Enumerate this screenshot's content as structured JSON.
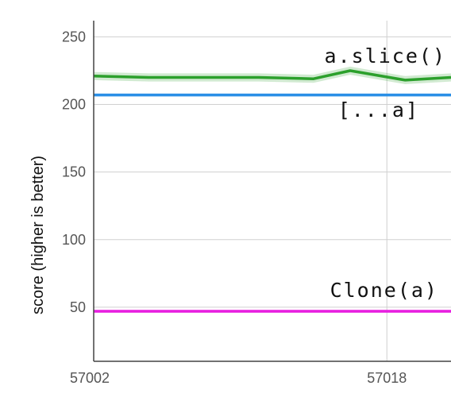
{
  "chart_data": {
    "type": "line",
    "ylabel": "score (higher is better)",
    "xlabel": "",
    "x_ticks": [
      57002,
      57018
    ],
    "y_ticks": [
      50,
      100,
      150,
      200,
      250
    ],
    "ylim": [
      10,
      262
    ],
    "xlim": [
      57002,
      57021.5
    ],
    "grid": true,
    "series": [
      {
        "name": "a.slice()",
        "color": "#2ca02c",
        "x": [
          57002,
          57005,
          57008,
          57011,
          57014,
          57016,
          57019,
          57021.5
        ],
        "y": [
          221,
          220,
          220,
          220,
          219,
          225,
          218,
          220
        ],
        "band": 3
      },
      {
        "name": "[...a]",
        "color": "#2a8fe6",
        "x": [
          57002,
          57005,
          57008,
          57011,
          57014,
          57016,
          57019,
          57021.5
        ],
        "y": [
          207,
          207,
          207,
          207,
          207,
          207,
          207,
          207
        ],
        "band": 1
      },
      {
        "name": "Clone(a)",
        "color": "#e81ee0",
        "x": [
          57002,
          57005,
          57008,
          57011,
          57014,
          57016,
          57019,
          57021.5
        ],
        "y": [
          47,
          47,
          47,
          47,
          47,
          47,
          47,
          47
        ],
        "band": 1
      }
    ]
  }
}
